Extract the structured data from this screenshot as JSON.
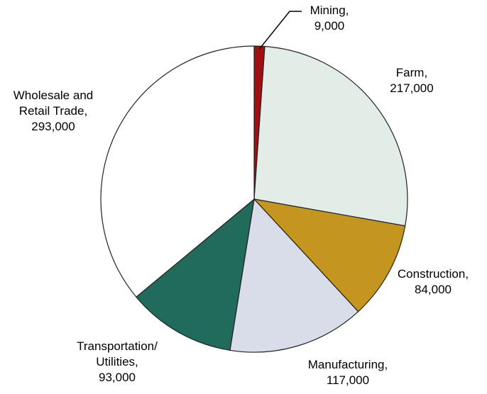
{
  "chart_data": {
    "type": "pie",
    "categories": [
      "Mining,",
      "Farm,",
      "Construction,",
      "Manufacturing,",
      "Transportation/ Utilities,",
      "Wholesale and Retail Trade,"
    ],
    "values": [
      9000,
      217000,
      84000,
      117000,
      93000,
      293000
    ],
    "value_labels": [
      "9,000",
      "217,000",
      "84,000",
      "117,000",
      "93,000",
      "293,000"
    ],
    "colors": [
      "#a01010",
      "#e2ede8",
      "#c4961f",
      "#d9dce9",
      "#206b5b",
      "#ffffff"
    ]
  }
}
